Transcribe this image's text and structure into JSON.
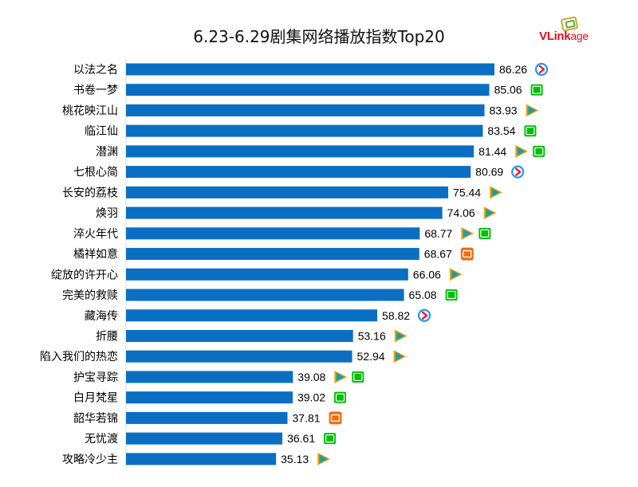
{
  "chart_data": {
    "type": "bar",
    "orientation": "horizontal",
    "title": "6.23-6.29剧集网络播放指数Top20",
    "xlabel": "",
    "ylabel": "",
    "xlim": [
      0,
      100
    ],
    "grid": false,
    "bar_color": "#0a6fc2",
    "categories": [
      "以法之名",
      "书卷一梦",
      "桃花映江山",
      "临江仙",
      "潜渊",
      "七根心简",
      "长安的荔枝",
      "焕羽",
      "淬火年代",
      "橘祥如意",
      "绽放的许开心",
      "完美的救赎",
      "藏海传",
      "折腰",
      "陷入我们的热恋",
      "护宝寻踪",
      "白月梵星",
      "韶华若锦",
      "无忧渡",
      "攻略冷少主"
    ],
    "values": [
      86.26,
      85.06,
      83.93,
      83.54,
      81.44,
      80.69,
      75.44,
      74.06,
      68.77,
      68.67,
      66.06,
      65.08,
      58.82,
      53.16,
      52.94,
      39.08,
      39.02,
      37.81,
      36.61,
      35.13
    ],
    "value_labels": [
      "86.26",
      "85.06",
      "83.93",
      "83.54",
      "81.44",
      "80.69",
      "75.44",
      "74.06",
      "68.77",
      "68.67",
      "66.06",
      "65.08",
      "58.82",
      "53.16",
      "52.94",
      "39.08",
      "39.02",
      "37.81",
      "36.61",
      "35.13"
    ],
    "platforms": [
      [
        "youku"
      ],
      [
        "iqiyi"
      ],
      [
        "tencent"
      ],
      [
        "iqiyi"
      ],
      [
        "tencent",
        "iqiyi"
      ],
      [
        "youku"
      ],
      [
        "tencent"
      ],
      [
        "tencent"
      ],
      [
        "tencent",
        "iqiyi"
      ],
      [
        "mgtv"
      ],
      [
        "tencent"
      ],
      [
        "iqiyi"
      ],
      [
        "youku"
      ],
      [
        "tencent"
      ],
      [
        "tencent"
      ],
      [
        "tencent",
        "iqiyi"
      ],
      [
        "iqiyi"
      ],
      [
        "mgtv"
      ],
      [
        "iqiyi"
      ],
      [
        "tencent"
      ]
    ]
  },
  "logo": {
    "brand": "VLink",
    "suffix": "age"
  },
  "colors": {
    "youku": "#1e9be9",
    "iqiyi": "#00be06",
    "tencent": "#f7a31c",
    "mgtv": "#f36a10"
  },
  "platform_icons": {
    "youku": "youku-icon",
    "iqiyi": "iqiyi-icon",
    "tencent": "tencent-video-icon",
    "mgtv": "mgtv-icon"
  }
}
